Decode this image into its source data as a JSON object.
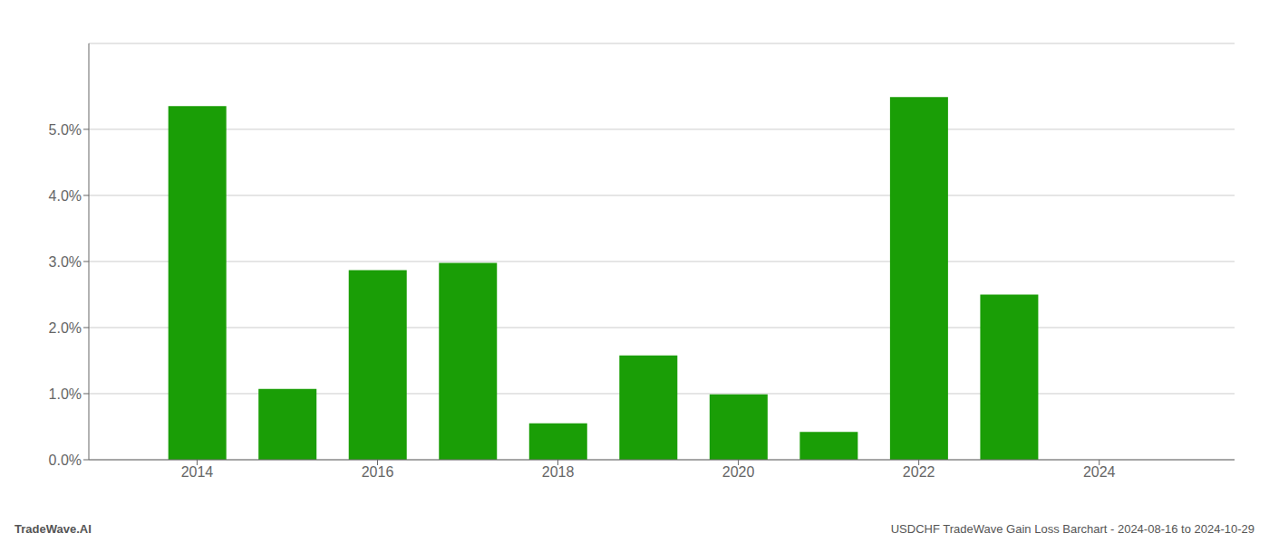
{
  "chart_data": {
    "type": "bar",
    "x": [
      2014,
      2015,
      2016,
      2017,
      2018,
      2019,
      2020,
      2021,
      2022,
      2023,
      2024
    ],
    "values": [
      0.0535,
      0.0107,
      0.0287,
      0.0298,
      0.0055,
      0.0158,
      0.0099,
      0.0042,
      0.0549,
      0.025,
      0.0
    ],
    "color": "#1a9e06",
    "xlim": [
      2012.8,
      2025.5
    ],
    "xticks": [
      2014,
      2016,
      2018,
      2020,
      2022,
      2024
    ],
    "ylim": [
      0,
      0.063
    ],
    "yticks": [
      {
        "value": 0.0,
        "label": "0.0%"
      },
      {
        "value": 0.01,
        "label": "1.0%"
      },
      {
        "value": 0.02,
        "label": "2.0%"
      },
      {
        "value": 0.03,
        "label": "3.0%"
      },
      {
        "value": 0.04,
        "label": "4.0%"
      },
      {
        "value": 0.05,
        "label": "5.0%"
      }
    ],
    "grid": true,
    "annotations": [
      "TradeWave.AI",
      "USDCHF TradeWave Gain Loss Barchart - 2024-08-16 to 2024-10-29"
    ]
  }
}
